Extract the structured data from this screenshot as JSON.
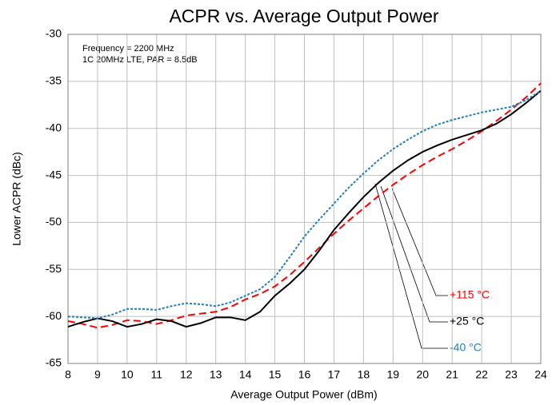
{
  "chart_data": {
    "type": "line",
    "title": "ACPR vs. Average Output Power",
    "xlabel": "Average Output Power (dBm)",
    "ylabel": "Lower ACPR (dBc)",
    "annotations": [
      "Frequency = 2200 MHz",
      "1C 20MHz LTE, PAR = 8.5dB"
    ],
    "x": [
      8,
      8.5,
      9,
      9.5,
      10,
      10.5,
      11,
      11.5,
      12,
      12.5,
      13,
      13.5,
      14,
      14.5,
      15,
      15.5,
      16,
      16.5,
      17,
      17.5,
      18,
      18.5,
      19,
      19.5,
      20,
      20.5,
      21,
      21.5,
      22,
      22.5,
      23,
      23.5,
      24
    ],
    "series": [
      {
        "name": "+115 °C",
        "color": "#ff0000",
        "dash": "9,5",
        "values": [
          -60.5,
          -60.8,
          -61.2,
          -60.9,
          -60.4,
          -60.5,
          -60.8,
          -60.4,
          -59.9,
          -59.7,
          -59.5,
          -59,
          -58.2,
          -57.6,
          -56.8,
          -55.6,
          -54.2,
          -52.7,
          -51.2,
          -49.8,
          -48.5,
          -47.2,
          -46,
          -44.9,
          -43.9,
          -43,
          -42.2,
          -41.3,
          -40.3,
          -39.2,
          -38,
          -36.7,
          -35.2
        ]
      },
      {
        "name": "+25 °C",
        "color": "#000000",
        "dash": "none",
        "values": [
          -61.1,
          -60.6,
          -60.2,
          -60.5,
          -61.1,
          -60.8,
          -60.3,
          -60.5,
          -61.1,
          -60.7,
          -60.1,
          -60.1,
          -60.4,
          -59.5,
          -57.8,
          -56.5,
          -55,
          -53,
          -50.8,
          -49,
          -47.3,
          -45.8,
          -44.5,
          -43.4,
          -42.5,
          -41.8,
          -41.2,
          -40.7,
          -40.2,
          -39.5,
          -38.5,
          -37.3,
          -36
        ]
      },
      {
        "name": "-40 °C",
        "color": "#1f7fc0",
        "dash": "3,2",
        "values": [
          -60,
          -60.1,
          -60.2,
          -59.8,
          -59.2,
          -59.2,
          -59.3,
          -58.9,
          -58.6,
          -58.7,
          -58.9,
          -58.5,
          -57.8,
          -57.1,
          -55.8,
          -53.7,
          -51.5,
          -49.7,
          -48,
          -46.3,
          -44.8,
          -43.4,
          -42.2,
          -41.2,
          -40.3,
          -39.6,
          -39.1,
          -38.7,
          -38.3,
          -38,
          -37.7,
          -37,
          -36
        ]
      }
    ],
    "xlim": [
      8,
      24
    ],
    "xticks": [
      8,
      9,
      10,
      11,
      12,
      13,
      14,
      15,
      16,
      17,
      18,
      19,
      20,
      21,
      22,
      23,
      24
    ],
    "ylim": [
      -65,
      -30
    ],
    "yticks": [
      -65,
      -60,
      -55,
      -50,
      -45,
      -40,
      -35,
      -30
    ],
    "grid": true
  }
}
